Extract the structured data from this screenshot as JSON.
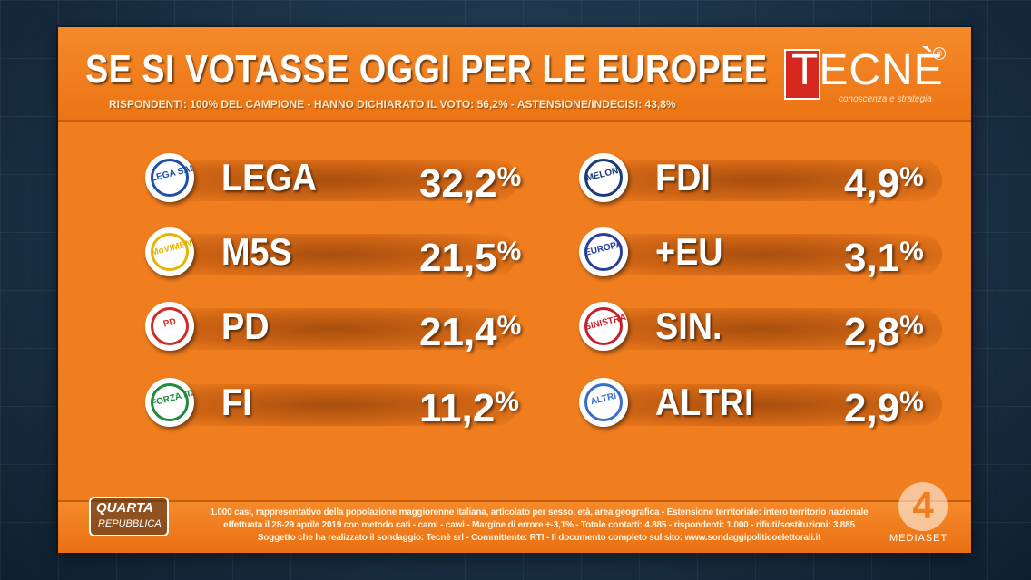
{
  "header": {
    "title": "SE SI VOTASSE OGGI PER LE EUROPEE",
    "subtitle": "RISPONDENTI: 100% DEL CAMPIONE - HANNO DICHIARATO IL VOTO: 56,2% - ASTENSIONE/INDECISI: 43,8%",
    "logo_text": "TECNÈ",
    "logo_tagline": "conoscenza e strategia",
    "logo_reg": "®"
  },
  "colors": {
    "panel": "#f07d1e",
    "text": "#ffffff",
    "logo_red": "#d6281f"
  },
  "chart_data": {
    "type": "table",
    "unit": "%",
    "items": [
      {
        "party": "LEGA",
        "value": "32,2",
        "logo": "lega-logo",
        "logo_text": "LEGA SALVINI",
        "color": "#1e4ea8"
      },
      {
        "party": "M5S",
        "value": "21,5",
        "logo": "m5s-logo",
        "logo_text": "MoVIMENTO",
        "color": "#e8b400"
      },
      {
        "party": "PD",
        "value": "21,4",
        "logo": "pd-logo",
        "logo_text": "PD",
        "color": "#d42a25"
      },
      {
        "party": "FI",
        "value": "11,2",
        "logo": "fi-logo",
        "logo_text": "FORZA ITALIA",
        "color": "#1f8a3a"
      },
      {
        "party": "FDI",
        "value": "4,9",
        "logo": "fdi-logo",
        "logo_text": "MELONI",
        "color": "#1a3a7a"
      },
      {
        "party": "+EU",
        "value": "3,1",
        "logo": "eu-logo",
        "logo_text": "EUROPA",
        "color": "#2a3f9c"
      },
      {
        "party": "SIN.",
        "value": "2,8",
        "logo": "sinistra-logo",
        "logo_text": "SINISTRA",
        "color": "#c8202a"
      },
      {
        "party": "ALTRI",
        "value": "2,9",
        "logo": "altri-logo",
        "logo_text": "ALTRI",
        "color": "#3a6cc8"
      }
    ]
  },
  "footer": {
    "lines": [
      "1.000 casi, rappresentativo della popolazione maggiorenne italiana, articolato per sesso, età, area geografica - Estensione territoriale: intero territorio nazionale",
      "effettuata il 28-29 aprile 2019 con metodo cati - cami - cawi - Margine di errore +-3,1% - Totale contatti: 4.885 - rispondenti: 1.000 - rifiuti/sostituzioni: 3.885",
      "Soggetto che ha realizzato il sondaggio: Tecnè srl - Committente: RTI - Il documento completo sul sito: www.sondaggipoliticoelettorali.it"
    ]
  },
  "bugs": {
    "show_name_1": "QUARTA",
    "show_name_2": "REPUBBLICA",
    "channel_number": "4",
    "channel_name": "MEDIASET"
  }
}
